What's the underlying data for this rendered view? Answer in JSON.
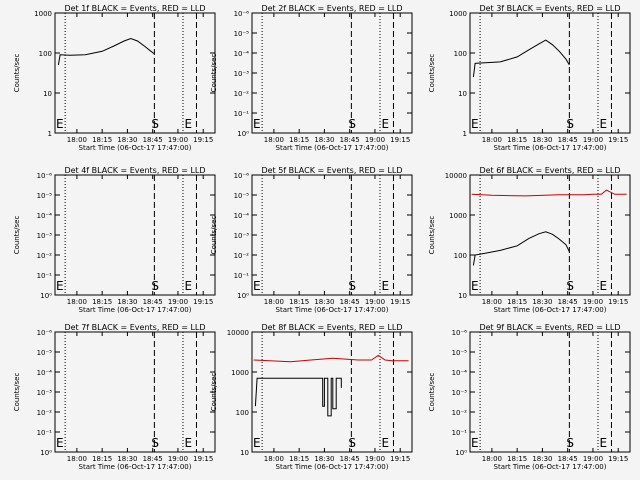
{
  "chart_data": [
    {
      "type": "line",
      "title": "Det 1f BLACK = Events, RED = LLD",
      "xlabel": "Start Time (06-Oct-17 17:47:00)",
      "ylabel": "Counts/sec",
      "x_ticks": [
        "18:00",
        "18:15",
        "18:30",
        "18:45",
        "19:00",
        "19:15"
      ],
      "y_scale": "log",
      "y_ticks": [
        "1",
        "10",
        "100",
        "1000"
      ],
      "ylim": [
        1,
        1000
      ],
      "markers": {
        "left": "E",
        "start": "S",
        "end": "E"
      },
      "series": [
        {
          "color": "#000000",
          "x": [
            "17:49",
            "17:50",
            "17:56",
            "18:05",
            "18:15",
            "18:22",
            "18:28",
            "18:32",
            "18:36",
            "18:40",
            "18:44",
            "18:46"
          ],
          "y": [
            50,
            90,
            88,
            90,
            110,
            150,
            200,
            230,
            200,
            150,
            110,
            95
          ]
        }
      ]
    },
    {
      "type": "line",
      "title": "Det 2f BLACK = Events, RED = LLD",
      "xlabel": "Start Time (06-Oct-17 17:47:00)",
      "ylabel": "Counts/sec",
      "x_ticks": [
        "18:00",
        "18:15",
        "18:30",
        "18:45",
        "19:00",
        "19:15"
      ],
      "y_scale": "log",
      "y_ticks": [
        "10⁰",
        "10⁻¹",
        "10⁻²",
        "10⁻³",
        "10⁻⁴",
        "10⁻⁵",
        "10⁻⁶"
      ],
      "markers": {
        "left": "E",
        "start": "S",
        "end": "E"
      },
      "series": []
    },
    {
      "type": "line",
      "title": "Det 3f BLACK = Events, RED = LLD",
      "xlabel": "Start Time (06-Oct-17 17:47:00)",
      "ylabel": "Counts/sec",
      "x_ticks": [
        "18:00",
        "18:15",
        "18:30",
        "18:45",
        "19:00",
        "19:15"
      ],
      "y_scale": "log",
      "y_ticks": [
        "1",
        "10",
        "100",
        "1000"
      ],
      "ylim": [
        1,
        1000
      ],
      "markers": {
        "left": "E",
        "start": "S",
        "end": "E"
      },
      "series": [
        {
          "color": "#000000",
          "x": [
            "17:49",
            "17:50",
            "17:56",
            "18:05",
            "18:15",
            "18:22",
            "18:28",
            "18:32",
            "18:36",
            "18:40",
            "18:44",
            "18:46"
          ],
          "y": [
            25,
            55,
            57,
            60,
            80,
            120,
            170,
            210,
            160,
            110,
            70,
            50
          ]
        }
      ]
    },
    {
      "type": "line",
      "title": "Det 4f BLACK = Events, RED = LLD",
      "xlabel": "Start Time (06-Oct-17 17:47:00)",
      "ylabel": "Counts/sec",
      "x_ticks": [
        "18:00",
        "18:15",
        "18:30",
        "18:45",
        "19:00",
        "19:15"
      ],
      "y_scale": "log",
      "y_ticks": [
        "10⁰",
        "10⁻¹",
        "10⁻²",
        "10⁻³",
        "10⁻⁴",
        "10⁻⁵",
        "10⁻⁶"
      ],
      "markers": {
        "left": "E",
        "start": "S",
        "end": "E"
      },
      "series": []
    },
    {
      "type": "line",
      "title": "Det 5f BLACK = Events, RED = LLD",
      "xlabel": "Start Time (06-Oct-17 17:47:00)",
      "ylabel": "Counts/sec",
      "x_ticks": [
        "18:00",
        "18:15",
        "18:30",
        "18:45",
        "19:00",
        "19:15"
      ],
      "y_scale": "log",
      "y_ticks": [
        "10⁰",
        "10⁻¹",
        "10⁻²",
        "10⁻³",
        "10⁻⁴",
        "10⁻⁵",
        "10⁻⁶"
      ],
      "markers": {
        "left": "E",
        "start": "S",
        "end": "E"
      },
      "series": []
    },
    {
      "type": "line",
      "title": "Det 6f BLACK = Events, RED = LLD",
      "xlabel": "Start Time (06-Oct-17 17:47:00)",
      "ylabel": "Counts/sec",
      "x_ticks": [
        "18:00",
        "18:15",
        "18:30",
        "18:45",
        "19:00",
        "19:15"
      ],
      "y_scale": "log",
      "y_ticks": [
        "10",
        "100",
        "1000",
        "10000"
      ],
      "ylim": [
        10,
        10000
      ],
      "markers": {
        "left": "E",
        "start": "S",
        "end": "E"
      },
      "series": [
        {
          "color": "#000000",
          "x": [
            "17:49",
            "17:50",
            "17:56",
            "18:05",
            "18:15",
            "18:22",
            "18:28",
            "18:32",
            "18:36",
            "18:40",
            "18:44",
            "18:46"
          ],
          "y": [
            55,
            100,
            110,
            130,
            170,
            260,
            340,
            380,
            330,
            250,
            180,
            120
          ]
        },
        {
          "color": "#cc0000",
          "x": [
            "17:48",
            "18:00",
            "18:20",
            "18:40",
            "18:55",
            "19:00",
            "19:05",
            "19:08",
            "19:13",
            "19:20"
          ],
          "y": [
            3300,
            3100,
            3000,
            3200,
            3200,
            3300,
            3300,
            4200,
            3300,
            3300
          ]
        }
      ]
    },
    {
      "type": "line",
      "title": "Det 7f BLACK = Events, RED = LLD",
      "xlabel": "Start Time (06-Oct-17 17:47:00)",
      "ylabel": "Counts/sec",
      "x_ticks": [
        "18:00",
        "18:15",
        "18:30",
        "18:45",
        "19:00",
        "19:15"
      ],
      "y_scale": "log",
      "y_ticks": [
        "10⁰",
        "10⁻¹",
        "10⁻²",
        "10⁻³",
        "10⁻⁴",
        "10⁻⁵",
        "10⁻⁶"
      ],
      "markers": {
        "left": "E",
        "start": "S",
        "end": "E"
      },
      "series": []
    },
    {
      "type": "line",
      "title": "Det 8f BLACK = Events, RED = LLD",
      "xlabel": "Start Time (06-Oct-17 17:47:00)",
      "ylabel": "Counts/sec",
      "x_ticks": [
        "18:00",
        "18:15",
        "18:30",
        "18:45",
        "19:00",
        "19:15"
      ],
      "y_scale": "log",
      "y_ticks": [
        "10",
        "100",
        "1000",
        "10000"
      ],
      "ylim": [
        10,
        10000
      ],
      "markers": {
        "left": "E",
        "start": "S",
        "end": "E"
      },
      "series": [
        {
          "color": "#000000",
          "x": [
            "17:49",
            "17:50",
            "18:29",
            "18:29",
            "18:30",
            "18:30",
            "18:32",
            "18:32",
            "18:34",
            "18:34",
            "18:35",
            "18:35",
            "18:37",
            "18:37",
            "18:40",
            "18:40"
          ],
          "y": [
            140,
            700,
            700,
            140,
            140,
            700,
            700,
            80,
            80,
            700,
            700,
            120,
            120,
            700,
            700,
            400
          ]
        },
        {
          "color": "#cc0000",
          "x": [
            "17:48",
            "18:10",
            "18:22",
            "18:35",
            "18:50",
            "18:58",
            "19:02",
            "19:06",
            "19:10",
            "19:20"
          ],
          "y": [
            2000,
            1800,
            2000,
            2200,
            2000,
            2000,
            2600,
            2000,
            1900,
            1900
          ]
        }
      ]
    },
    {
      "type": "line",
      "title": "Det 9f BLACK = Events, RED = LLD",
      "xlabel": "Start Time (06-Oct-17 17:47:00)",
      "ylabel": "Counts/sec",
      "x_ticks": [
        "18:00",
        "18:15",
        "18:30",
        "18:45",
        "19:00",
        "19:15"
      ],
      "y_scale": "log",
      "y_ticks": [
        "10⁰",
        "10⁻¹",
        "10⁻²",
        "10⁻³",
        "10⁻⁴",
        "10⁻⁵",
        "10⁻⁶"
      ],
      "markers": {
        "left": "E",
        "start": "S",
        "end": "E"
      },
      "series": []
    }
  ]
}
